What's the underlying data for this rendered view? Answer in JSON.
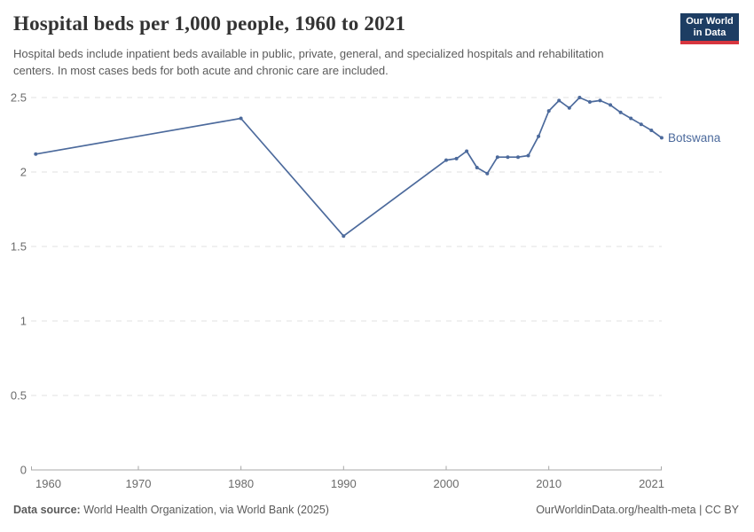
{
  "header": {
    "title": "Hospital beds per 1,000 people, 1960 to 2021",
    "subtitle": "Hospital beds include inpatient beds available in public, private, general, and specialized hospitals and rehabilitation centers. In most cases beds for both acute and chronic care are included.",
    "logo": {
      "line1": "Our World",
      "line2": "in Data",
      "bg_color": "#1d3d63",
      "bar_color": "#d7363f"
    }
  },
  "chart_data": {
    "type": "line",
    "title": "Hospital beds per 1,000 people, 1960 to 2021",
    "xlabel": "",
    "ylabel": "",
    "xlim": [
      1960,
      2021
    ],
    "ylim": [
      0,
      2.5
    ],
    "yticks": [
      0,
      0.5,
      1,
      1.5,
      2,
      2.5
    ],
    "ytick_labels": [
      "0",
      "0.5",
      "1",
      "1.5",
      "2",
      "2.5"
    ],
    "xticks": [
      1960,
      1970,
      1980,
      1990,
      2000,
      2010,
      2021
    ],
    "grid": "horizontal-dashed",
    "legend_position": "end-of-line-label",
    "series": [
      {
        "name": "Botswana",
        "color": "#4C6A9C",
        "points": [
          [
            1960,
            2.12
          ],
          [
            1980,
            2.36
          ],
          [
            1990,
            1.57
          ],
          [
            2000,
            2.08
          ],
          [
            2001,
            2.09
          ],
          [
            2002,
            2.14
          ],
          [
            2003,
            2.03
          ],
          [
            2004,
            1.99
          ],
          [
            2005,
            2.1
          ],
          [
            2006,
            2.1
          ],
          [
            2007,
            2.1
          ],
          [
            2008,
            2.11
          ],
          [
            2009,
            2.24
          ],
          [
            2010,
            2.41
          ],
          [
            2011,
            2.48
          ],
          [
            2012,
            2.43
          ],
          [
            2013,
            2.5
          ],
          [
            2014,
            2.47
          ],
          [
            2015,
            2.48
          ],
          [
            2016,
            2.45
          ],
          [
            2017,
            2.4
          ],
          [
            2018,
            2.36
          ],
          [
            2019,
            2.32
          ],
          [
            2020,
            2.28
          ],
          [
            2021,
            2.23
          ]
        ]
      }
    ]
  },
  "footer": {
    "source_label": "Data source:",
    "source_text": " World Health Organization, via World Bank (2025)",
    "link_text": "OurWorldinData.org/health-meta | CC BY"
  },
  "colors": {
    "line": "#4C6A9C",
    "grid": "#e0e0e0",
    "axis": "#a8a8a8",
    "tick_text": "#6b6b6b",
    "title_text": "#333333",
    "subtitle_text": "#5b5b5b",
    "logo_bg": "#1d3d63",
    "logo_bar": "#d7363f"
  }
}
